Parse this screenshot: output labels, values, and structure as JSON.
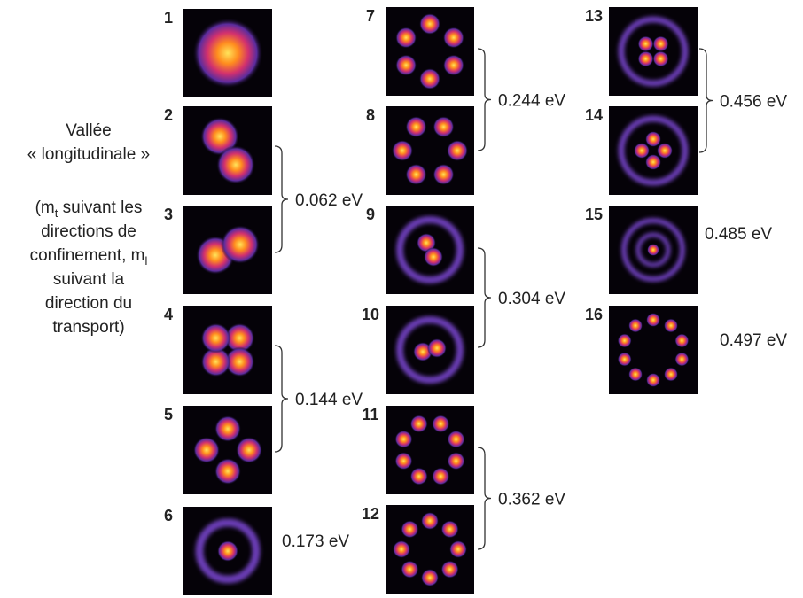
{
  "side_text": {
    "title": [
      "Vallée",
      "« longitudinale »"
    ],
    "note": {
      "line1": {
        "text": "(m",
        "sub": "t",
        "tail": " suivant les"
      },
      "line2": "directions de",
      "line3": {
        "text": "confinement, m",
        "sub": "l"
      },
      "line4": "suivant la",
      "line5": "direction du",
      "line6": "transport)"
    }
  },
  "panels": [
    "1",
    "2",
    "3",
    "4",
    "5",
    "6",
    "7",
    "8",
    "9",
    "10",
    "11",
    "12",
    "13",
    "14",
    "15",
    "16"
  ],
  "energies": [
    "0.062 eV",
    "0.144 eV",
    "0.173 eV",
    "0.244 eV",
    "0.304 eV",
    "0.362 eV",
    "0.456 eV",
    "0.485 eV",
    "0.497 eV"
  ]
}
